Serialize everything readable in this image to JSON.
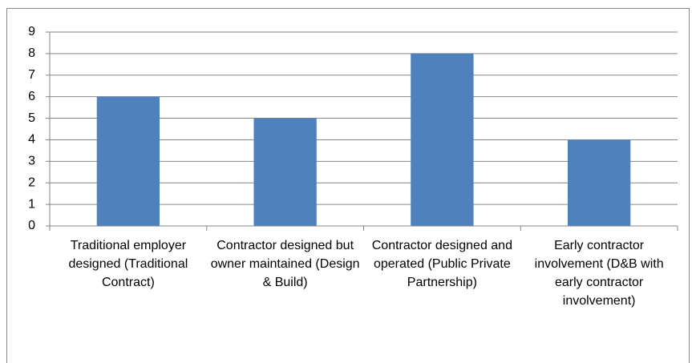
{
  "chart_data": {
    "type": "bar",
    "categories": [
      "Traditional employer designed (Traditional Contract)",
      "Contractor designed but owner maintained (Design & Build)",
      "Contractor designed and operated (Public Private Partnership)",
      "Early contractor involvement (D&B with early contractor involvement)"
    ],
    "values": [
      6,
      5,
      8,
      4
    ],
    "color": "#4f81bd",
    "ylim": [
      0,
      9
    ],
    "yticks": [
      0,
      1,
      2,
      3,
      4,
      5,
      6,
      7,
      8,
      9
    ],
    "grid": true
  }
}
